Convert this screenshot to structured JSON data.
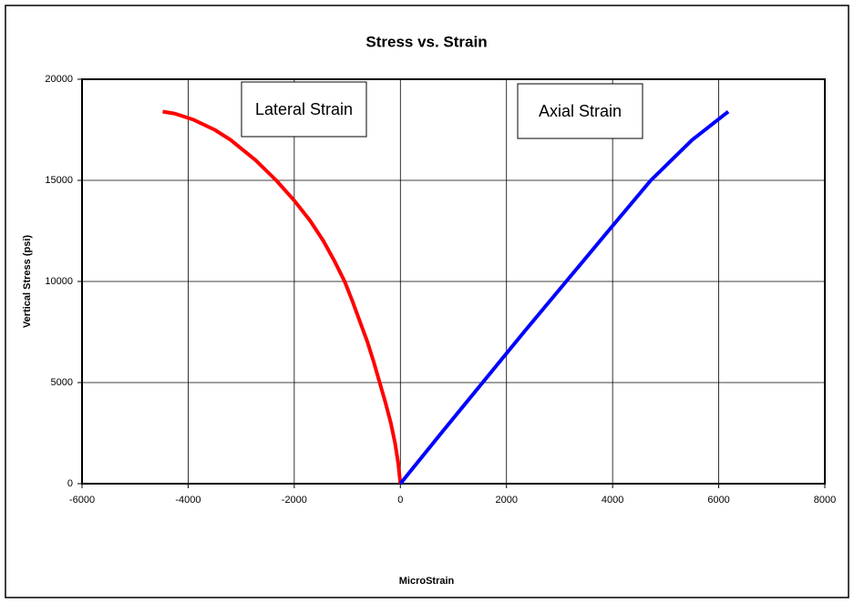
{
  "chart_data": {
    "type": "line",
    "title": "Stress vs. Strain",
    "x_label": "MicroStrain",
    "y_label": "Vertical Stress (psi)",
    "xlim": [
      -6000,
      8000
    ],
    "xticks": [
      -6000,
      -4000,
      -2000,
      0,
      2000,
      4000,
      6000,
      8000
    ],
    "ylim": [
      0,
      20000
    ],
    "yticks": [
      0,
      5000,
      10000,
      15000,
      20000
    ],
    "grid": true,
    "series": [
      {
        "name": "Lateral Strain",
        "color": "#ff0000",
        "x": [
          0,
          -40,
          -100,
          -180,
          -280,
          -390,
          -500,
          -620,
          -760,
          -900,
          -1050,
          -1240,
          -1450,
          -1700,
          -2000,
          -2340,
          -2730,
          -3200,
          -3500,
          -3900,
          -4250,
          -4480
        ],
        "values": [
          0,
          1000,
          2000,
          3000,
          4000,
          5000,
          6000,
          7000,
          8000,
          9000,
          10000,
          11000,
          12000,
          13000,
          14000,
          15000,
          16000,
          17000,
          17500,
          18000,
          18300,
          18400
        ]
      },
      {
        "name": "Axial Strain",
        "color": "#0000ff",
        "x": [
          0,
          770,
          1550,
          2330,
          3125,
          3920,
          4720,
          5500,
          6180
        ],
        "values": [
          0,
          2500,
          5000,
          7500,
          10000,
          12500,
          15000,
          17000,
          18400
        ]
      }
    ]
  }
}
